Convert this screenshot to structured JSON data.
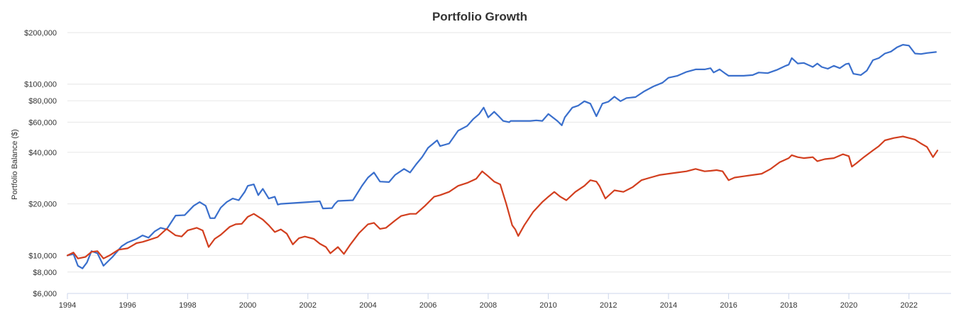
{
  "chart_data": {
    "type": "line",
    "title": "Portfolio Growth",
    "xlabel": "",
    "ylabel": "Portfolio Balance ($)",
    "y_scale": "log",
    "ylim": [
      6000,
      220000
    ],
    "xlim": [
      1994,
      2023.4
    ],
    "grid": true,
    "legend": "none",
    "colors": {
      "series_1": "#3a6fcc",
      "series_2": "#d23f1f",
      "grid": "#e6e6e6",
      "axis": "#ccd6eb"
    },
    "x_ticks": [
      1994,
      1996,
      1998,
      2000,
      2002,
      2004,
      2006,
      2008,
      2010,
      2012,
      2014,
      2016,
      2018,
      2020,
      2022
    ],
    "x_tick_labels": [
      "1994",
      "1996",
      "1998",
      "2000",
      "2002",
      "2004",
      "2006",
      "2008",
      "2010",
      "2012",
      "2014",
      "2016",
      "2018",
      "2020",
      "2022"
    ],
    "y_ticks": [
      6000,
      8000,
      10000,
      20000,
      40000,
      60000,
      80000,
      100000,
      200000
    ],
    "y_tick_labels": [
      "$6,000",
      "$8,000",
      "$10,000",
      "$20,000",
      "$40,000",
      "$60,000",
      "$80,000",
      "$100,000",
      "$200,000"
    ],
    "series": [
      {
        "x": [
          1994.0,
          1994.2,
          1994.35,
          1994.5,
          1994.65,
          1994.8,
          1995.0,
          1995.2,
          1995.5,
          1995.8,
          1996.0,
          1996.3,
          1996.5,
          1996.7,
          1996.9,
          1997.1,
          1997.3,
          1997.6,
          1997.9,
          1998.2,
          1998.4,
          1998.6,
          1998.75,
          1998.9,
          1999.1,
          1999.3,
          1999.5,
          1999.7,
          1999.9,
          2000.0,
          2000.2,
          2000.35,
          2000.5,
          2000.7,
          2000.9,
          2001.0,
          2001.1,
          2002.0,
          2002.4,
          2002.5,
          2002.8,
          2002.9,
          2003.0,
          2003.5,
          2003.8,
          2004.0,
          2004.2,
          2004.4,
          2004.7,
          2004.9,
          2005.2,
          2005.4,
          2005.6,
          2005.8,
          2006.0,
          2006.3,
          2006.4,
          2006.7,
          2007.0,
          2007.3,
          2007.5,
          2007.7,
          2007.85,
          2008.0,
          2008.2,
          2008.35,
          2008.5,
          2008.7,
          2008.75,
          2009.0,
          2009.4,
          2009.6,
          2009.8,
          2010.0,
          2010.3,
          2010.45,
          2010.55,
          2010.8,
          2011.0,
          2011.2,
          2011.4,
          2011.6,
          2011.8,
          2012.0,
          2012.2,
          2012.4,
          2012.6,
          2012.9,
          2013.2,
          2013.5,
          2013.8,
          2014.0,
          2014.3,
          2014.6,
          2014.9,
          2015.2,
          2015.4,
          2015.5,
          2015.7,
          2015.9,
          2016.0,
          2016.2,
          2016.5,
          2016.8,
          2017.0,
          2017.3,
          2017.6,
          2017.9,
          2018.0,
          2018.1,
          2018.3,
          2018.5,
          2018.8,
          2018.95,
          2019.1,
          2019.3,
          2019.5,
          2019.7,
          2019.9,
          2020.0,
          2020.15,
          2020.4,
          2020.6,
          2020.8,
          2021.0,
          2021.2,
          2021.4,
          2021.6,
          2021.8,
          2022.0,
          2022.2,
          2022.4,
          2022.6,
          2022.9
        ],
        "values": [
          10000,
          10200,
          8700,
          8400,
          9100,
          10600,
          10300,
          8700,
          9800,
          11300,
          11900,
          12500,
          13100,
          12700,
          13800,
          14500,
          14200,
          17100,
          17200,
          19500,
          20500,
          19500,
          16500,
          16500,
          19000,
          20500,
          21500,
          21000,
          23500,
          25500,
          26000,
          22500,
          24500,
          21500,
          22000,
          19800,
          20000,
          20500,
          20700,
          18800,
          18900,
          20000,
          20800,
          21000,
          25500,
          28500,
          30500,
          27000,
          26800,
          29500,
          32000,
          30500,
          34000,
          37500,
          42500,
          47000,
          43500,
          45000,
          53500,
          57000,
          62500,
          67000,
          73000,
          64000,
          69000,
          65000,
          61000,
          60000,
          61000,
          61000,
          61000,
          61500,
          61000,
          67000,
          61000,
          57500,
          64000,
          73000,
          75000,
          79500,
          77000,
          65000,
          77000,
          79000,
          84500,
          79500,
          83000,
          84000,
          91000,
          97000,
          102000,
          109000,
          112000,
          118000,
          122000,
          122000,
          124000,
          117000,
          122000,
          115000,
          112000,
          112000,
          112000,
          113000,
          117000,
          116000,
          121000,
          128000,
          130000,
          142000,
          132000,
          133000,
          126000,
          132000,
          126000,
          123000,
          128000,
          124000,
          131000,
          132000,
          115000,
          113000,
          120000,
          138000,
          142000,
          151000,
          155000,
          164000,
          170000,
          168000,
          151000,
          150000,
          152000,
          154000
        ]
      },
      {
        "x": [
          1994.0,
          1994.2,
          1994.35,
          1994.6,
          1994.8,
          1995.0,
          1995.2,
          1995.4,
          1995.7,
          1996.0,
          1996.3,
          1996.5,
          1996.7,
          1997.0,
          1997.3,
          1997.6,
          1997.8,
          1998.0,
          1998.3,
          1998.5,
          1998.7,
          1998.9,
          1999.1,
          1999.4,
          1999.6,
          1999.8,
          2000.0,
          2000.2,
          2000.5,
          2000.7,
          2000.9,
          2001.1,
          2001.3,
          2001.5,
          2001.7,
          2001.9,
          2002.2,
          2002.4,
          2002.6,
          2002.75,
          2003.0,
          2003.2,
          2003.4,
          2003.7,
          2004.0,
          2004.2,
          2004.4,
          2004.6,
          2004.9,
          2005.1,
          2005.4,
          2005.6,
          2005.9,
          2006.2,
          2006.4,
          2006.7,
          2007.0,
          2007.3,
          2007.6,
          2007.8,
          2008.0,
          2008.2,
          2008.4,
          2008.6,
          2008.8,
          2008.9,
          2009.0,
          2009.2,
          2009.5,
          2009.8,
          2010.0,
          2010.2,
          2010.4,
          2010.6,
          2010.9,
          2011.2,
          2011.4,
          2011.6,
          2011.7,
          2011.9,
          2012.2,
          2012.5,
          2012.8,
          2013.1,
          2013.4,
          2013.7,
          2014.0,
          2014.3,
          2014.6,
          2014.9,
          2015.2,
          2015.4,
          2015.6,
          2015.8,
          2016.0,
          2016.2,
          2016.5,
          2016.8,
          2017.1,
          2017.4,
          2017.7,
          2018.0,
          2018.1,
          2018.3,
          2018.5,
          2018.8,
          2018.95,
          2019.2,
          2019.5,
          2019.8,
          2020.0,
          2020.1,
          2020.25,
          2020.5,
          2020.8,
          2021.0,
          2021.2,
          2021.5,
          2021.8,
          2022.0,
          2022.2,
          2022.4,
          2022.6,
          2022.8,
          2022.95
        ],
        "values": [
          10000,
          10400,
          9600,
          9800,
          10500,
          10600,
          9600,
          10000,
          10800,
          11000,
          11800,
          12000,
          12300,
          12800,
          14300,
          13100,
          12900,
          14000,
          14500,
          14000,
          11200,
          12500,
          13200,
          14700,
          15200,
          15300,
          16800,
          17500,
          16200,
          15000,
          13700,
          14200,
          13400,
          11600,
          12600,
          12900,
          12500,
          11700,
          11200,
          10300,
          11200,
          10200,
          11500,
          13500,
          15200,
          15500,
          14300,
          14500,
          16000,
          17000,
          17500,
          17500,
          19500,
          22000,
          22500,
          23500,
          25500,
          26500,
          28000,
          31000,
          29000,
          27000,
          26000,
          20000,
          15000,
          14200,
          13000,
          15000,
          18000,
          20500,
          22000,
          23500,
          22000,
          21000,
          23500,
          25500,
          27500,
          27000,
          25500,
          21500,
          24000,
          23500,
          25000,
          27500,
          28500,
          29500,
          30000,
          30500,
          31000,
          32000,
          31000,
          31200,
          31500,
          31000,
          27500,
          28500,
          29000,
          29500,
          30000,
          32000,
          35000,
          37000,
          38500,
          37500,
          37000,
          37500,
          35500,
          36500,
          37000,
          39000,
          38000,
          33000,
          34500,
          37500,
          41000,
          43500,
          47000,
          48500,
          49500,
          48500,
          47500,
          45000,
          43000,
          37500,
          41000
        ]
      }
    ]
  }
}
